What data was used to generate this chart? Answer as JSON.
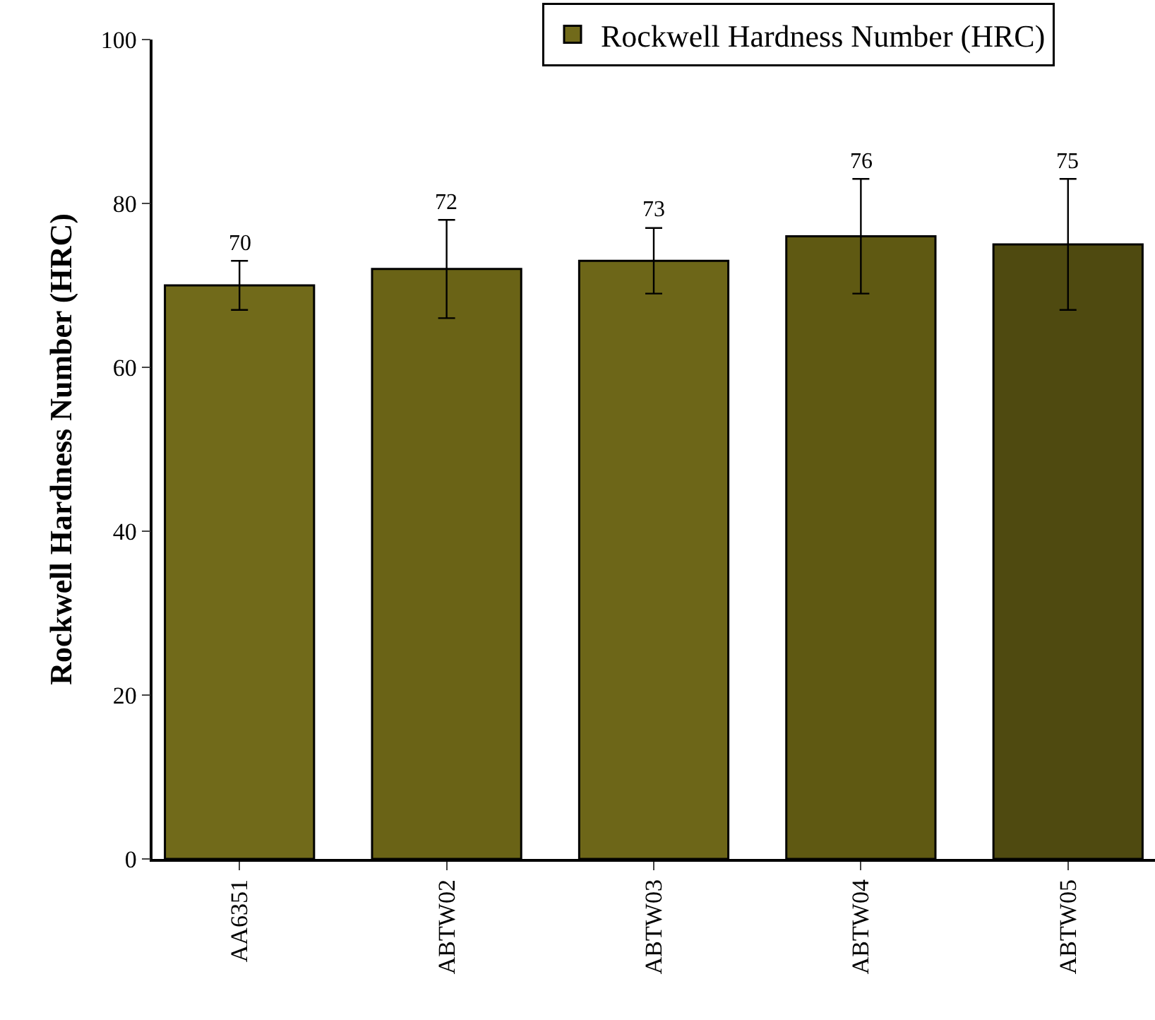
{
  "chart_data": {
    "type": "bar",
    "ylabel": "Rockwell Hardness Number (HRC)",
    "categories": [
      "AA6351",
      "ABTW02",
      "ABTW03",
      "ABTW04",
      "ABTW05"
    ],
    "series": [
      {
        "name": "Rockwell Hardness Number (HRC)",
        "colors": [
          "#716a1a",
          "#6a6316",
          "#6d6618",
          "#5f5912",
          "#4f4a10"
        ],
        "values": [
          70,
          72,
          73,
          76,
          75
        ],
        "errors": [
          3,
          6,
          4,
          7,
          8
        ]
      }
    ],
    "ylim": [
      0,
      100
    ],
    "yticks": [
      0,
      20,
      40,
      60,
      80,
      100
    ],
    "grid": false,
    "legend": "top right",
    "data_labels": true
  }
}
